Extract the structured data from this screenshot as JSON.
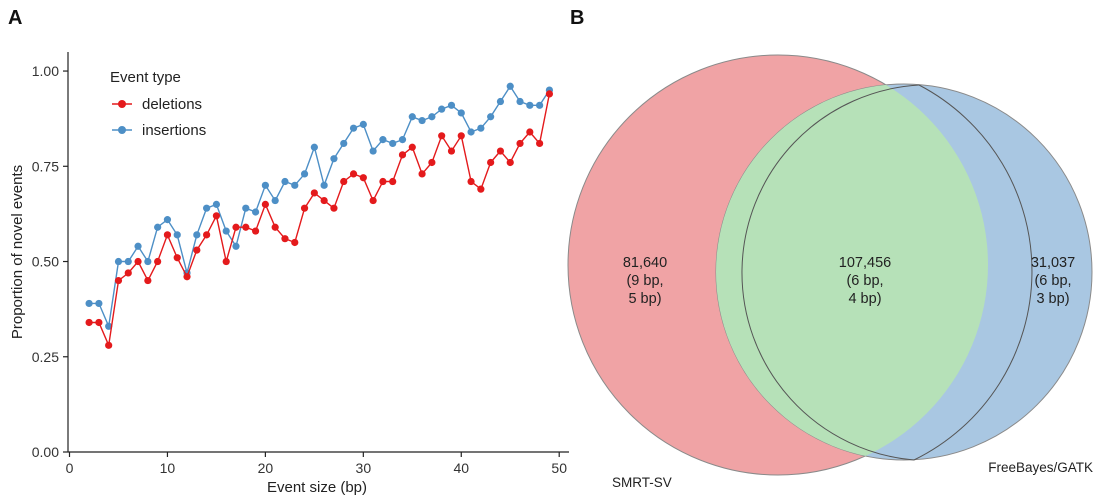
{
  "panels": {
    "a": "A",
    "b": "B"
  },
  "chart_data": [
    {
      "type": "line",
      "xlabel": "Event size (bp)",
      "ylabel": "Proportion of novel events",
      "xlim": [
        0,
        51
      ],
      "ylim": [
        0,
        1.05
      ],
      "xticks": [
        0,
        10,
        20,
        30,
        40,
        50
      ],
      "xtick_labels": [
        "0",
        "10",
        "20",
        "30",
        "40",
        "50"
      ],
      "yticks": [
        0,
        0.25,
        0.5,
        0.75,
        1.0
      ],
      "ytick_labels": [
        "0.00",
        "0.25",
        "0.50",
        "0.75",
        "1.00"
      ],
      "grid": false,
      "legend": {
        "title": "Event type",
        "position": "top-left"
      },
      "x": [
        2,
        3,
        4,
        5,
        6,
        7,
        8,
        9,
        10,
        11,
        12,
        13,
        14,
        15,
        16,
        17,
        18,
        19,
        20,
        21,
        22,
        23,
        24,
        25,
        26,
        27,
        28,
        29,
        30,
        31,
        32,
        33,
        34,
        35,
        36,
        37,
        38,
        39,
        40,
        41,
        42,
        43,
        44,
        45,
        46,
        47,
        48,
        49
      ],
      "series": [
        {
          "name": "deletions",
          "color": "#e41a1c",
          "values": [
            0.34,
            0.34,
            0.28,
            0.45,
            0.47,
            0.5,
            0.45,
            0.5,
            0.57,
            0.51,
            0.46,
            0.53,
            0.57,
            0.62,
            0.5,
            0.59,
            0.59,
            0.58,
            0.65,
            0.59,
            0.56,
            0.55,
            0.64,
            0.68,
            0.66,
            0.64,
            0.71,
            0.73,
            0.72,
            0.66,
            0.71,
            0.71,
            0.78,
            0.8,
            0.73,
            0.76,
            0.83,
            0.79,
            0.83,
            0.71,
            0.69,
            0.76,
            0.79,
            0.76,
            0.81,
            0.84,
            0.81,
            0.94
          ]
        },
        {
          "name": "insertions",
          "color": "#4d8fc6",
          "values": [
            0.39,
            0.39,
            0.33,
            0.5,
            0.5,
            0.54,
            0.5,
            0.59,
            0.61,
            0.57,
            0.47,
            0.57,
            0.64,
            0.65,
            0.58,
            0.54,
            0.64,
            0.63,
            0.7,
            0.66,
            0.71,
            0.7,
            0.73,
            0.8,
            0.7,
            0.77,
            0.81,
            0.85,
            0.86,
            0.79,
            0.82,
            0.81,
            0.82,
            0.88,
            0.87,
            0.88,
            0.9,
            0.91,
            0.89,
            0.84,
            0.85,
            0.88,
            0.92,
            0.96,
            0.92,
            0.91,
            0.91,
            0.95
          ]
        }
      ]
    },
    {
      "type": "venn",
      "sets": [
        {
          "name": "SMRT-SV",
          "color": "#f0a3a5"
        },
        {
          "name": "FreeBayes/GATK",
          "color": "#a9c7e2"
        }
      ],
      "overlap_color": "#b6e1b8",
      "regions": [
        {
          "id": "smrt_only",
          "lines": [
            "81,640",
            "(9 bp,",
            "5 bp)"
          ]
        },
        {
          "id": "both",
          "lines": [
            "107,456",
            "(6 bp,",
            "4 bp)"
          ]
        },
        {
          "id": "freebayes_only",
          "lines": [
            "31,037",
            "(6 bp,",
            "3 bp)"
          ]
        }
      ]
    }
  ]
}
